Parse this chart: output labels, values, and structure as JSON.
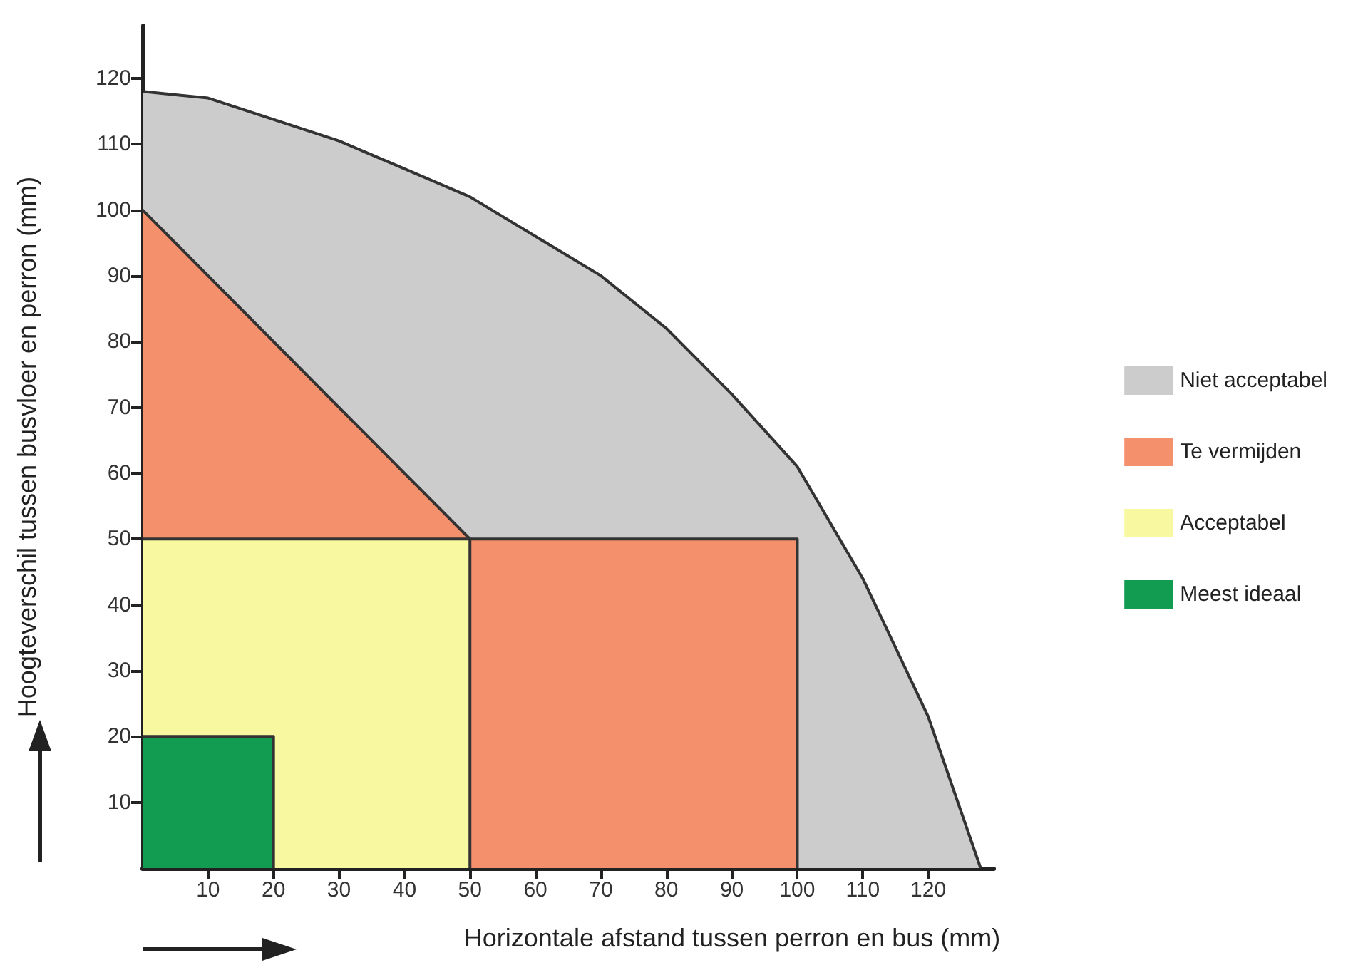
{
  "chart_data": {
    "type": "area",
    "xlabel": "Horizontale afstand tussen perron en bus (mm)",
    "ylabel": "Hoogteverschil tussen busvloer en perron (mm)",
    "xlim": [
      0,
      130
    ],
    "ylim": [
      0,
      128
    ],
    "xticks": [
      10,
      20,
      30,
      40,
      50,
      60,
      70,
      80,
      90,
      100,
      110,
      120
    ],
    "yticks": [
      10,
      20,
      30,
      40,
      50,
      60,
      70,
      80,
      90,
      100,
      110,
      120
    ],
    "grid": false,
    "legend": "right",
    "marker": "none",
    "series": [
      {
        "name": "Niet acceptabel",
        "color": "#cccccc",
        "x": [
          0,
          10,
          30,
          50,
          70,
          80,
          90,
          100,
          110,
          120,
          128
        ],
        "values": [
          118,
          117,
          110.5,
          102,
          90,
          82,
          72,
          61,
          44,
          23,
          0
        ]
      },
      {
        "name": "Te vermijden",
        "color": "#f4906c",
        "x": [
          0,
          50,
          100,
          100
        ],
        "values": [
          100,
          50,
          50,
          0
        ]
      },
      {
        "name": "Acceptabel",
        "color": "#f8f8a0",
        "x": [
          0,
          50,
          50
        ],
        "values": [
          50,
          50,
          0
        ]
      },
      {
        "name": "Meest ideaal",
        "color": "#119c52",
        "x": [
          0,
          20,
          20
        ],
        "values": [
          20,
          20,
          0
        ]
      }
    ]
  }
}
